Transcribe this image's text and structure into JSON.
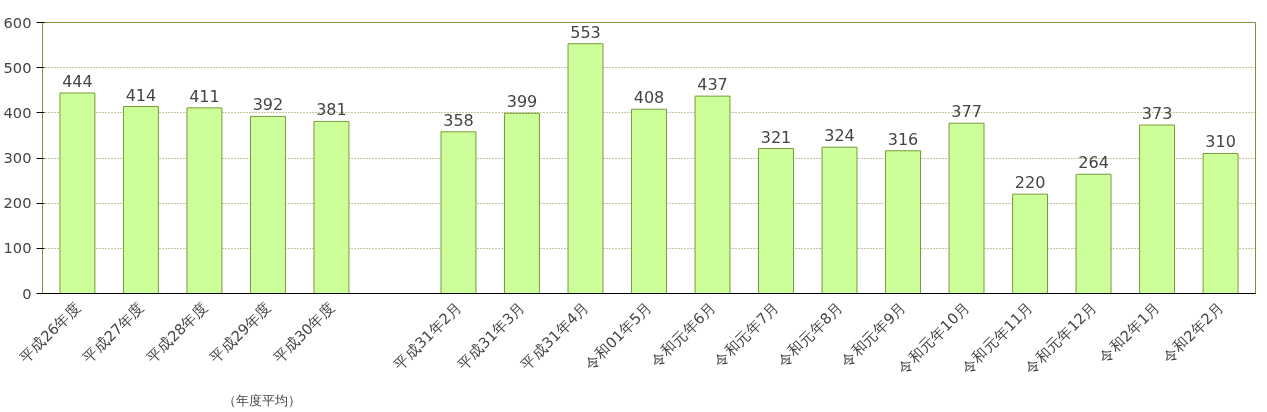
{
  "chart_data": {
    "type": "bar",
    "categories": [
      "平成26年度",
      "平成27年度",
      "平成28年度",
      "平成29年度",
      "平成30年度",
      null,
      "平成31年2月",
      "平成31年3月",
      "平成31年4月",
      "令和01年5月",
      "令和元年6月",
      "令和元年7月",
      "令和元年8月",
      "令和元年9月",
      "令和元年10月",
      "令和元年11月",
      "令和元年12月",
      "令和2年1月",
      "令和2年2月"
    ],
    "values": [
      444,
      414,
      411,
      392,
      381,
      null,
      358,
      399,
      553,
      408,
      437,
      321,
      324,
      316,
      377,
      220,
      264,
      373,
      310
    ],
    "color": "#ccff99",
    "ylim": [
      0,
      600
    ],
    "yticks": [
      0,
      100,
      200,
      300,
      400,
      500,
      600
    ],
    "grid": "y",
    "data_labels": true,
    "annotations": [
      "（年度平均）"
    ]
  }
}
